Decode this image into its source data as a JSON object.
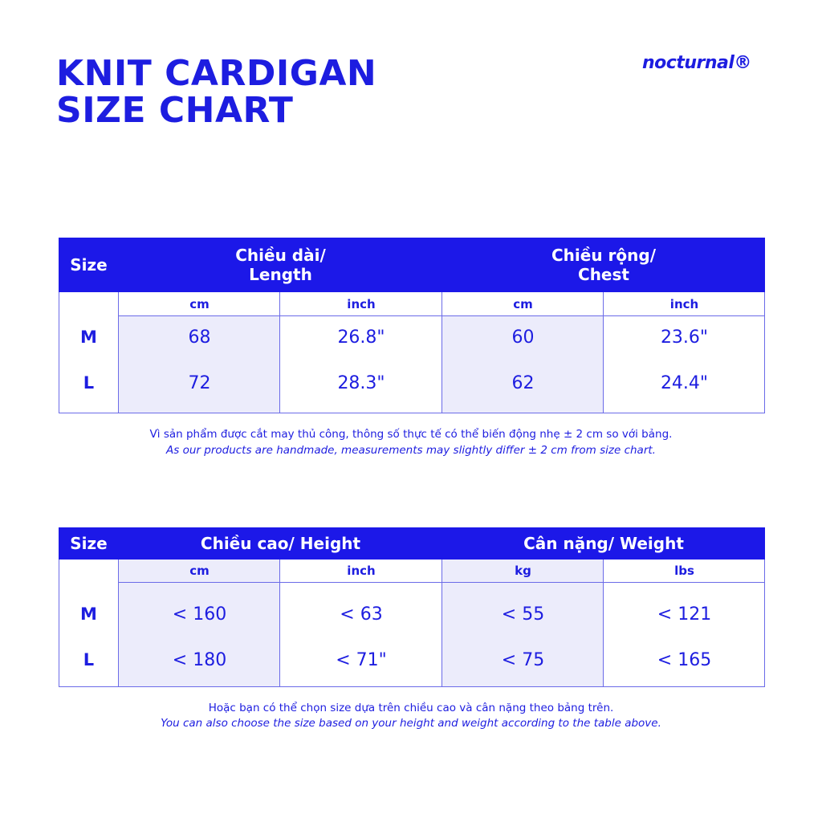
{
  "header": {
    "title_lines": [
      "KNIT CARDIGAN",
      "SIZE CHART"
    ],
    "brand": "nocturnal®"
  },
  "tables": [
    {
      "size_header": "Size",
      "groups": [
        {
          "label_lines": [
            "Chiều dài/",
            "Length"
          ],
          "units": [
            "cm",
            "inch"
          ]
        },
        {
          "label_lines": [
            "Chiều rộng/",
            "Chest"
          ],
          "units": [
            "cm",
            "inch"
          ]
        }
      ],
      "rows": [
        {
          "size": "M",
          "values": [
            "68",
            "26.8\"",
            "60",
            "23.6\""
          ]
        },
        {
          "size": "L",
          "values": [
            "72",
            "28.3\"",
            "62",
            "24.4\""
          ]
        }
      ],
      "notes": [
        "Vì sản phẩm được cắt may thủ công, thông số thực tế có thể biến động nhẹ ± 2 cm so với bảng.",
        "As our products are handmade, measurements may slightly differ ± 2 cm from size chart."
      ]
    },
    {
      "size_header": "Size",
      "groups": [
        {
          "label_lines": [
            "Chiều cao/ Height"
          ],
          "units": [
            "cm",
            "inch"
          ]
        },
        {
          "label_lines": [
            "Cân nặng/ Weight"
          ],
          "units": [
            "kg",
            "lbs"
          ]
        }
      ],
      "rows": [
        {
          "size": "M",
          "values": [
            "< 160",
            "< 63",
            "< 55",
            "< 121"
          ]
        },
        {
          "size": "L",
          "values": [
            "< 180",
            "< 71\"",
            "< 75",
            "< 165"
          ]
        }
      ],
      "notes": [
        "Hoặc bạn có thể chọn size dựa trên chiều cao và cân nặng theo bảng trên.",
        "You can also choose the size based on your height and weight according to the table above."
      ]
    }
  ]
}
